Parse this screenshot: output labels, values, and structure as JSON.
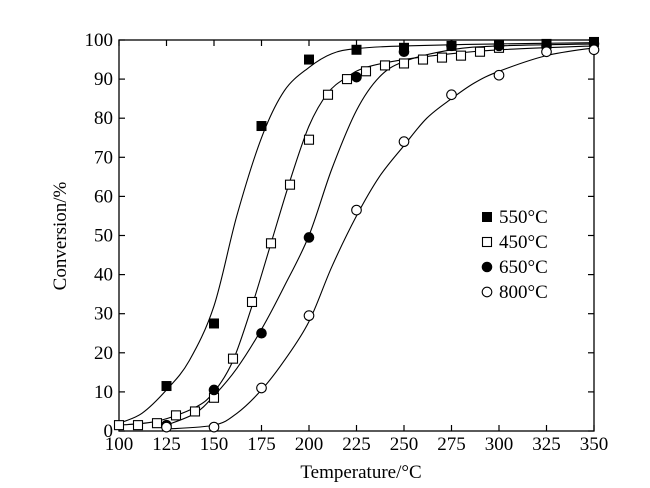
{
  "chart_data": {
    "type": "scatter",
    "title": "",
    "xlabel": "Temperature/°C",
    "ylabel": "Conversion/%",
    "xlim": [
      100,
      350
    ],
    "ylim": [
      0,
      100
    ],
    "xticks": [
      100,
      125,
      150,
      175,
      200,
      225,
      250,
      275,
      300,
      325,
      350
    ],
    "yticks": [
      0,
      10,
      20,
      30,
      40,
      50,
      60,
      70,
      80,
      90,
      100
    ],
    "grid": false,
    "legend_position": "right",
    "series": [
      {
        "name": "550°C",
        "marker": "filled-square",
        "x": [
          125,
          150,
          175,
          200,
          225,
          250,
          275,
          300,
          325,
          350
        ],
        "y": [
          11.5,
          27.5,
          78,
          95,
          97.5,
          98,
          98.5,
          98.8,
          99,
          99.5
        ],
        "fit": [
          [
            100,
            2
          ],
          [
            112,
            4.5
          ],
          [
            125,
            10.5
          ],
          [
            137,
            18
          ],
          [
            150,
            32
          ],
          [
            162,
            55
          ],
          [
            175,
            75
          ],
          [
            187,
            87
          ],
          [
            200,
            93
          ],
          [
            212,
            96.5
          ],
          [
            225,
            97.8
          ],
          [
            250,
            98.5
          ],
          [
            300,
            99
          ],
          [
            350,
            99.3
          ]
        ]
      },
      {
        "name": "450°C",
        "marker": "open-square",
        "x": [
          100,
          110,
          120,
          130,
          140,
          150,
          160,
          170,
          180,
          190,
          200,
          210,
          220,
          230,
          240,
          250,
          260,
          270,
          280,
          290,
          300
        ],
        "y": [
          1.5,
          1.5,
          2,
          4,
          5,
          8.5,
          18.5,
          33,
          48,
          63,
          74.5,
          86,
          90,
          92,
          93.5,
          94,
          95,
          95.5,
          96,
          97,
          98
        ],
        "fit": [
          [
            100,
            1.5
          ],
          [
            120,
            2.5
          ],
          [
            140,
            6
          ],
          [
            150,
            10
          ],
          [
            160,
            18
          ],
          [
            170,
            32
          ],
          [
            180,
            48
          ],
          [
            190,
            64
          ],
          [
            200,
            78
          ],
          [
            210,
            86.5
          ],
          [
            220,
            90.5
          ],
          [
            230,
            93
          ],
          [
            250,
            95
          ],
          [
            275,
            96.5
          ],
          [
            300,
            97.5
          ],
          [
            350,
            98.5
          ]
        ]
      },
      {
        "name": "650°C",
        "marker": "filled-circle",
        "x": [
          125,
          150,
          175,
          200,
          225,
          250,
          275,
          300,
          325,
          350
        ],
        "y": [
          1.5,
          10.5,
          25,
          49.5,
          90.5,
          97,
          98.5,
          98.5,
          98.5,
          99
        ],
        "fit": [
          [
            125,
            1.5
          ],
          [
            140,
            4.5
          ],
          [
            150,
            9
          ],
          [
            162,
            16
          ],
          [
            175,
            26
          ],
          [
            187,
            37
          ],
          [
            200,
            50
          ],
          [
            212,
            67
          ],
          [
            225,
            82
          ],
          [
            237,
            90.5
          ],
          [
            250,
            94.5
          ],
          [
            275,
            97.5
          ],
          [
            300,
            98.5
          ],
          [
            350,
            99
          ]
        ]
      },
      {
        "name": "800°C",
        "marker": "open-circle",
        "x": [
          125,
          150,
          175,
          200,
          225,
          250,
          275,
          300,
          325,
          350
        ],
        "y": [
          1,
          1,
          11,
          29.5,
          56.5,
          74,
          86,
          91,
          97,
          97.5
        ],
        "fit": [
          [
            125,
            0.5
          ],
          [
            150,
            1.5
          ],
          [
            162,
            4.5
          ],
          [
            175,
            10.5
          ],
          [
            187,
            18
          ],
          [
            200,
            28
          ],
          [
            212,
            42
          ],
          [
            225,
            55
          ],
          [
            237,
            65
          ],
          [
            250,
            73
          ],
          [
            262,
            80
          ],
          [
            275,
            85
          ],
          [
            287,
            89
          ],
          [
            300,
            92
          ],
          [
            325,
            96
          ],
          [
            350,
            98
          ]
        ]
      }
    ]
  }
}
